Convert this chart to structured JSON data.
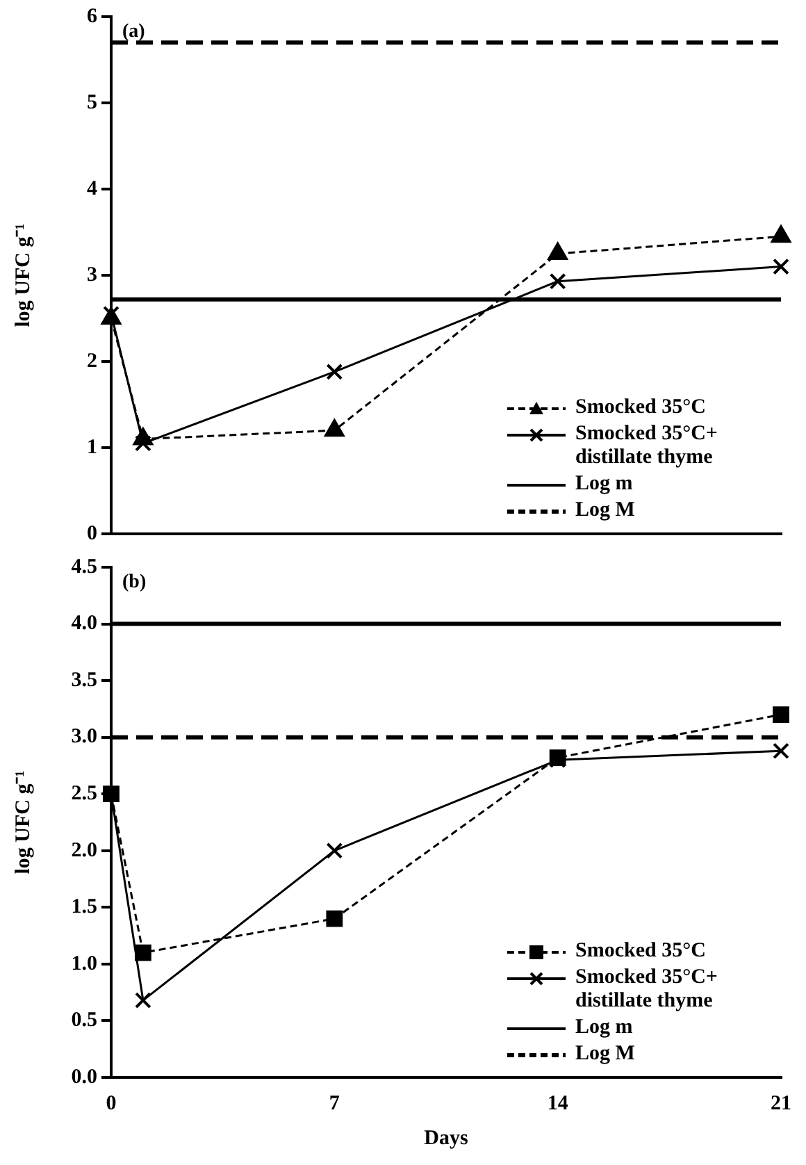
{
  "chart_data": [
    {
      "type": "line",
      "annotations": [
        "(a)"
      ],
      "ylabel": "log UFC g⁻¹",
      "x": [
        0,
        1,
        7,
        14,
        21
      ],
      "xlim": [
        0,
        21
      ],
      "xticks": [
        0,
        7,
        14,
        21
      ],
      "ylim": [
        0,
        6
      ],
      "yticks": [
        0,
        1,
        2,
        3,
        4,
        5,
        6
      ],
      "tick_labels": "y",
      "legend": "bottom right",
      "series": [
        {
          "name": "Smocked 35°C",
          "color": "#000000",
          "values": [
            2.5,
            1.1,
            1.2,
            3.25,
            3.45
          ],
          "marker": "triangle",
          "line_style": "dashed"
        },
        {
          "name": "Smocked 35°C+ distillate thyme",
          "color": "#000000",
          "values": [
            2.55,
            1.05,
            1.88,
            2.93,
            3.1
          ],
          "marker": "cross",
          "line_style": "solid"
        }
      ],
      "ref_lines": [
        {
          "axis": "y",
          "value": 2.72,
          "label": "Log m",
          "color": "#000000",
          "line_style": "solid"
        },
        {
          "axis": "y",
          "value": 5.7,
          "label": "Log M",
          "color": "#000000",
          "line_style": "dashed"
        }
      ]
    },
    {
      "type": "line",
      "annotations": [
        "(b)"
      ],
      "xlabel": "Days",
      "ylabel": "log UFC g⁻¹",
      "x": [
        0,
        1,
        7,
        14,
        21
      ],
      "xlim": [
        0,
        21
      ],
      "xticks": [
        0,
        7,
        14,
        21
      ],
      "ylim": [
        0,
        4.5
      ],
      "yticks": [
        {
          "value": 0,
          "label": "0.0"
        },
        {
          "value": 0.5,
          "label": "0.5"
        },
        {
          "value": 1,
          "label": "1.0"
        },
        {
          "value": 1.5,
          "label": "1.5"
        },
        {
          "value": 2,
          "label": "2.0"
        },
        {
          "value": 2.5,
          "label": "2.5"
        },
        {
          "value": 3,
          "label": "3.0"
        },
        {
          "value": 3.5,
          "label": "3.5"
        },
        {
          "value": 4,
          "label": "4.0"
        },
        {
          "value": 4.5,
          "label": "4.5"
        }
      ],
      "legend": "bottom right",
      "series": [
        {
          "name": "Smocked 35°C",
          "color": "#000000",
          "values": [
            2.5,
            1.1,
            1.4,
            2.82,
            3.2
          ],
          "marker": "square",
          "line_style": "dashed"
        },
        {
          "name": "Smocked 35°C+ distillate thyme",
          "color": "#000000",
          "values": [
            2.5,
            0.68,
            2.0,
            2.8,
            2.88
          ],
          "marker": "cross",
          "line_style": "solid"
        }
      ],
      "ref_lines": [
        {
          "axis": "y",
          "value": 4.0,
          "label": "Log m",
          "color": "#000000",
          "line_style": "solid"
        },
        {
          "axis": "y",
          "value": 3.0,
          "label": "Log M",
          "color": "#000000",
          "line_style": "dashed"
        }
      ]
    }
  ]
}
